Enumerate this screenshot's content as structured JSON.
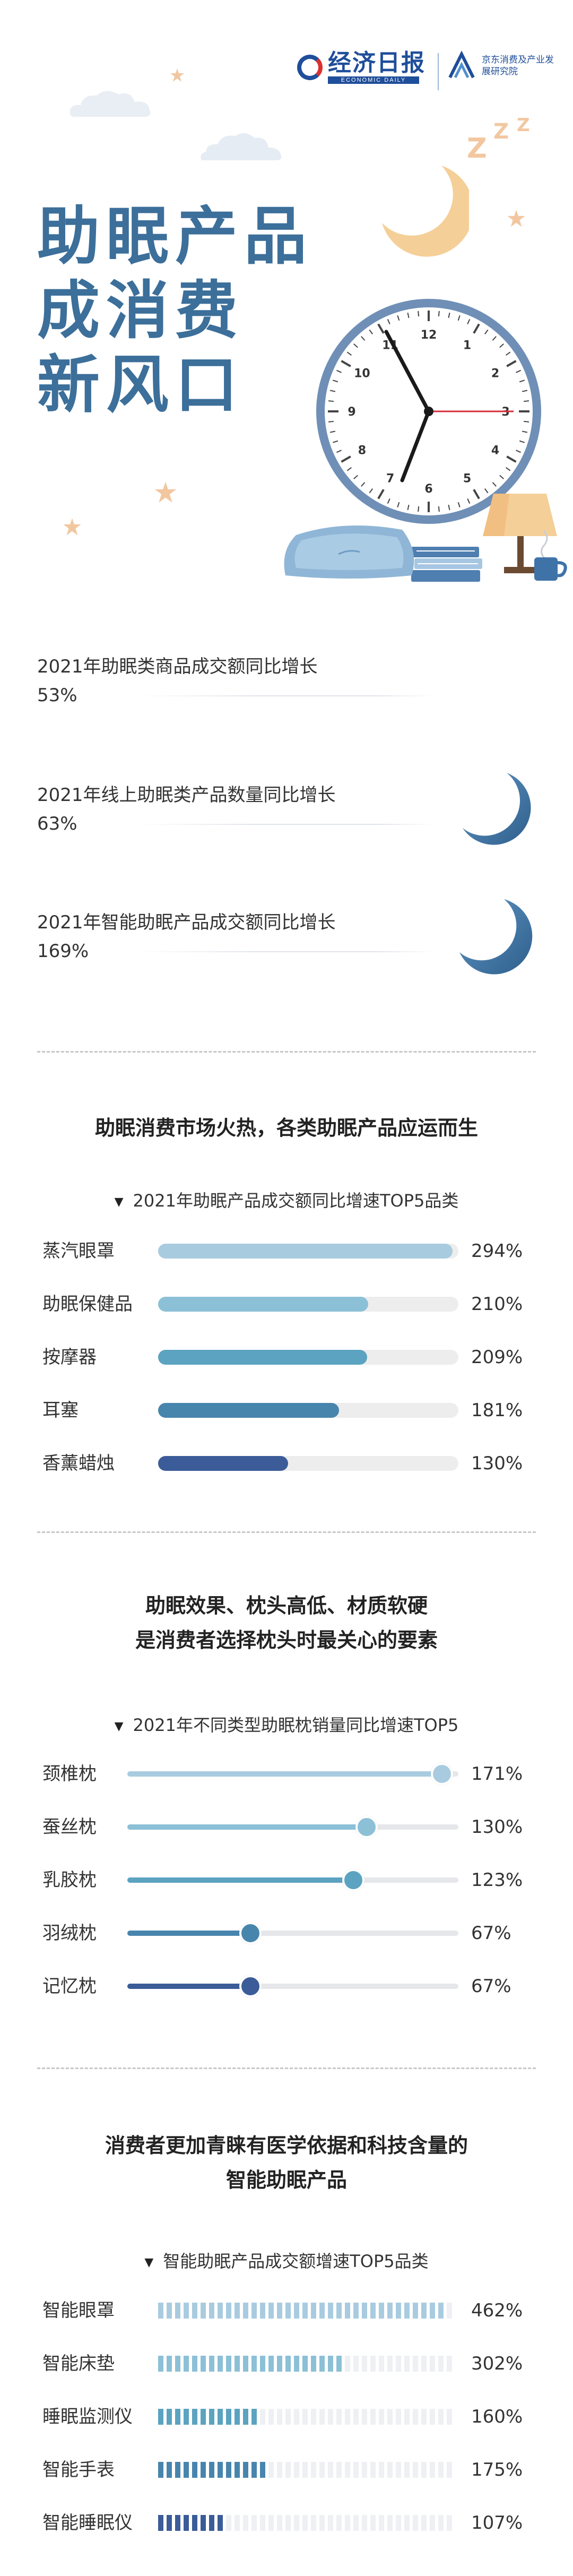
{
  "header": {
    "economic_daily_title": "经济日报",
    "economic_daily_sub": "ECONOMIC DAILY",
    "jd_institute": "京东消费及产业发展研究院"
  },
  "hero": {
    "title_lines": [
      "助眠产品",
      "成消费",
      "新风口"
    ],
    "clock_numbers": [
      "12",
      "1",
      "2",
      "3",
      "4",
      "5",
      "6",
      "7",
      "8",
      "9",
      "10",
      "11"
    ],
    "zzz": [
      "Z",
      "Z",
      "Z"
    ]
  },
  "stats": [
    {
      "label": "2021年助眠类商品成交额同比增长",
      "value": "53%"
    },
    {
      "label": "2021年线上助眠类产品数量同比增长",
      "value": "63%"
    },
    {
      "label": "2021年智能助眠产品成交额同比增长",
      "value": "169%"
    }
  ],
  "section1": {
    "title": "助眠消费市场火热，各类助眠产品应运而生",
    "chart_data": {
      "type": "bar",
      "title": "2021年助眠产品成交额同比增速TOP5品类",
      "categories": [
        "蒸汽眼罩",
        "助眠保健品",
        "按摩器",
        "耳塞",
        "香薰蜡烛"
      ],
      "values": [
        294,
        210,
        209,
        181,
        130
      ],
      "value_labels": [
        "294%",
        "210%",
        "209%",
        "181%",
        "130%"
      ],
      "colors": [
        "#a9cbe0",
        "#8cc0d6",
        "#5ba3c0",
        "#4885ad",
        "#3b5c98"
      ],
      "max": 300
    }
  },
  "section2": {
    "title_lines": [
      "助眠效果、枕头高低、材质软硬",
      "是消费者选择枕头时最关心的要素"
    ],
    "chart_data": {
      "type": "bar",
      "title": "2021年不同类型助眠枕销量同比增速TOP5",
      "categories": [
        "颈椎枕",
        "蚕丝枕",
        "乳胶枕",
        "羽绒枕",
        "记忆枕"
      ],
      "values": [
        171,
        130,
        123,
        67,
        67
      ],
      "value_labels": [
        "171%",
        "130%",
        "123%",
        "67%",
        "67%"
      ],
      "colors": [
        "#a9cbe0",
        "#8cc0d6",
        "#5ba3c0",
        "#4885ad",
        "#3b5c98"
      ],
      "max": 180
    }
  },
  "section3": {
    "title_lines": [
      "消费者更加青睐有医学依据和科技含量的",
      "智能助眠产品"
    ],
    "chart_data": {
      "type": "bar",
      "title": "智能助眠产品成交额增速TOP5品类",
      "categories": [
        "智能眼罩",
        "智能床垫",
        "睡眠监测仪",
        "智能手表",
        "智能睡眠仪"
      ],
      "values": [
        462,
        302,
        160,
        175,
        107
      ],
      "value_labels": [
        "462%",
        "302%",
        "160%",
        "175%",
        "107%"
      ],
      "colors": [
        "#a9cbe0",
        "#8cc0d6",
        "#5ba3c0",
        "#4885ad",
        "#3b5c98"
      ],
      "max": 470
    }
  }
}
